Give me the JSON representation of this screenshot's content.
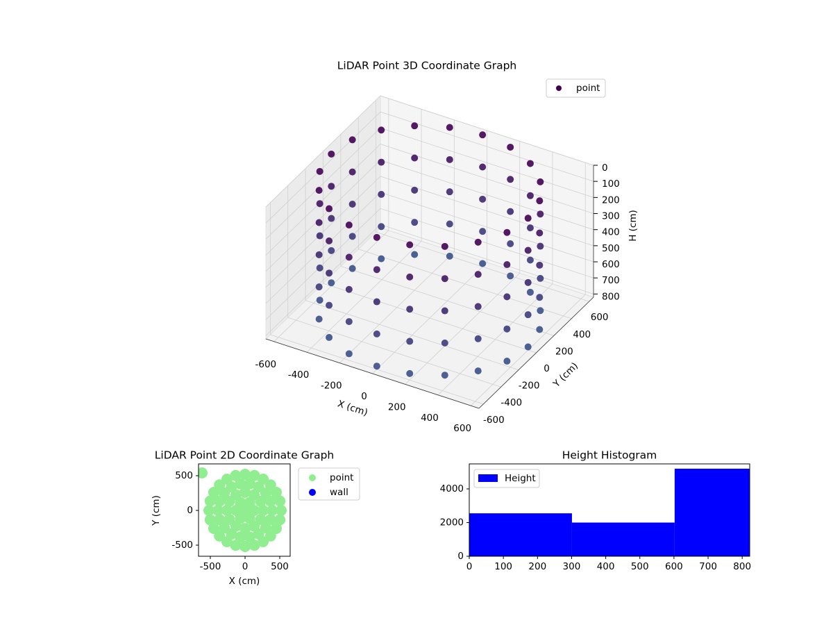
{
  "chart_data": [
    {
      "type": "scatter3d",
      "title": "LiDAR Point 3D Coordinate Graph",
      "x_label": "X (cm)",
      "y_label": "Y (cm)",
      "z_label": "H (cm)",
      "xlim": [
        -650,
        650
      ],
      "ylim": [
        -650,
        650
      ],
      "zlim": [
        0,
        820
      ],
      "z_inverted": true,
      "xticks": [
        -600,
        -400,
        -200,
        0,
        200,
        400,
        600
      ],
      "yticks": [
        -600,
        -400,
        -200,
        0,
        200,
        400,
        600
      ],
      "zticks": [
        0,
        100,
        200,
        300,
        400,
        500,
        600,
        700,
        800
      ],
      "grid": true,
      "legend": "upper right",
      "series": [
        {
          "name": "point",
          "colormap": [
            "#440154",
            "#3b528b"
          ],
          "x": [
            600,
            571,
            485,
            353,
            185,
            0,
            -185,
            -353,
            -485,
            -571,
            -600,
            -571,
            -485,
            -353,
            -185,
            0,
            185,
            353,
            485,
            571,
            600,
            571,
            485,
            353,
            185,
            0,
            -185,
            -353,
            -485,
            -571,
            -600,
            -571,
            -485,
            -353,
            -185,
            0,
            185,
            353,
            485,
            571,
            600,
            571,
            485,
            353,
            185,
            0,
            -185,
            -353,
            -485,
            -571,
            -600,
            -571,
            -485,
            -353,
            -185,
            0,
            185,
            353,
            485,
            571,
            600,
            571,
            485,
            353,
            185,
            0,
            -185,
            -353,
            -485,
            -571,
            -600,
            -571,
            -485,
            -353,
            -185,
            0,
            185,
            353,
            485,
            571,
            600,
            571,
            485,
            353,
            185,
            0,
            -185,
            -353,
            -485,
            -571,
            -600,
            -571,
            -485,
            -353,
            -185,
            0,
            185,
            353,
            485,
            571
          ],
          "y": [
            0,
            185,
            353,
            485,
            571,
            600,
            571,
            485,
            353,
            185,
            0,
            -185,
            -353,
            -485,
            -571,
            -600,
            -571,
            -485,
            -353,
            -185,
            0,
            185,
            353,
            485,
            571,
            600,
            571,
            485,
            353,
            185,
            0,
            -185,
            -353,
            -485,
            -571,
            -600,
            -571,
            -485,
            -353,
            -185,
            0,
            185,
            353,
            485,
            571,
            600,
            571,
            485,
            353,
            185,
            0,
            -185,
            -353,
            -485,
            -571,
            -600,
            -571,
            -485,
            -353,
            -185,
            0,
            185,
            353,
            485,
            571,
            600,
            571,
            485,
            353,
            185,
            0,
            -185,
            -353,
            -485,
            -571,
            -600,
            -571,
            -485,
            -353,
            -185,
            0,
            185,
            353,
            485,
            571,
            600,
            571,
            485,
            353,
            185,
            0,
            -185,
            -353,
            -485,
            -571,
            -600,
            -571,
            -485,
            -353,
            -185
          ],
          "z": [
            0,
            0,
            0,
            0,
            0,
            0,
            0,
            0,
            0,
            0,
            0,
            0,
            0,
            0,
            0,
            0,
            0,
            0,
            0,
            0,
            200,
            200,
            200,
            200,
            200,
            200,
            200,
            200,
            200,
            200,
            200,
            200,
            200,
            200,
            200,
            200,
            200,
            200,
            200,
            200,
            400,
            400,
            400,
            400,
            400,
            400,
            400,
            400,
            400,
            400,
            400,
            400,
            400,
            400,
            400,
            400,
            400,
            400,
            400,
            400,
            600,
            600,
            600,
            600,
            600,
            600,
            600,
            600,
            600,
            600,
            600,
            600,
            600,
            600,
            600,
            600,
            600,
            600,
            600,
            600,
            800,
            800,
            800,
            800,
            800,
            800,
            800,
            800,
            800,
            800,
            800,
            800,
            800,
            800,
            800,
            800,
            800,
            800,
            800,
            800
          ]
        }
      ]
    },
    {
      "type": "scatter",
      "title": "LiDAR Point 2D Coordinate Graph",
      "x_label": "X (cm)",
      "y_label": "Y (cm)",
      "xlim": [
        -670,
        650
      ],
      "ylim": [
        -660,
        670
      ],
      "xticks": [
        -500,
        0,
        500
      ],
      "yticks": [
        -500,
        0,
        500
      ],
      "legend": "outside right",
      "series": [
        {
          "name": "point",
          "color": "#90ee90",
          "x": [
            0,
            130,
            65,
            -65,
            -130,
            -65,
            65,
            260,
            225,
            130,
            0,
            -130,
            -225,
            -260,
            -225,
            -130,
            0,
            130,
            225,
            390,
            367,
            299,
            195,
            68,
            -68,
            -195,
            -299,
            -367,
            -390,
            -367,
            -299,
            -195,
            -68,
            68,
            195,
            299,
            367,
            520,
            502,
            450,
            368,
            260,
            135,
            0,
            -135,
            -260,
            -368,
            -450,
            -502,
            -520,
            -502,
            -450,
            -368,
            -260,
            -135,
            0,
            135,
            260,
            368,
            450,
            502,
            -620
          ],
          "y": [
            0,
            0,
            113,
            113,
            0,
            -113,
            -113,
            0,
            130,
            225,
            260,
            225,
            130,
            0,
            -130,
            -225,
            -260,
            -225,
            -130,
            0,
            133,
            251,
            338,
            384,
            384,
            338,
            251,
            133,
            0,
            -133,
            -251,
            -338,
            -384,
            -384,
            -338,
            -251,
            -133,
            0,
            135,
            260,
            368,
            450,
            502,
            520,
            502,
            450,
            368,
            260,
            135,
            0,
            -135,
            -260,
            -368,
            -450,
            -502,
            -520,
            -502,
            -450,
            -368,
            -260,
            -135,
            540
          ]
        },
        {
          "name": "wall",
          "color": "#0000ff",
          "x": [],
          "y": []
        }
      ]
    },
    {
      "type": "histogram",
      "title": "Height Histogram",
      "xlim": [
        0,
        822
      ],
      "ylim": [
        0,
        5485
      ],
      "xticks": [
        0,
        100,
        200,
        300,
        400,
        500,
        600,
        700,
        800
      ],
      "yticks": [
        0,
        2000,
        4000
      ],
      "legend": "upper left",
      "bins": [
        0,
        301,
        602,
        822
      ],
      "series": [
        {
          "name": "Height",
          "color": "#0000ff",
          "values": [
            2550,
            2000,
            5200
          ]
        }
      ]
    }
  ]
}
